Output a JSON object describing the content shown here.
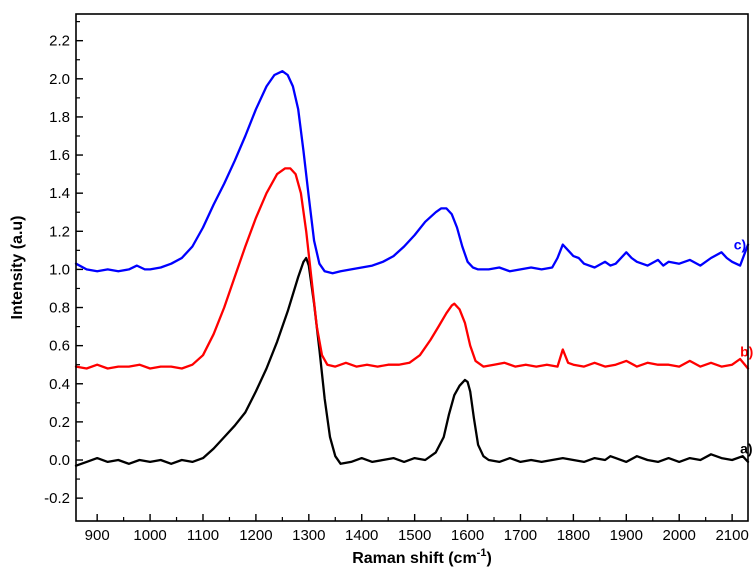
{
  "chart_data": {
    "type": "line",
    "xlabel": "Raman shift (cm",
    "xlabel_sup": "-1",
    "xlabel_end": ")",
    "ylabel": "Intensity (a.u)",
    "xlim": [
      860,
      2130
    ],
    "ylim": [
      -0.32,
      2.34
    ],
    "x_ticks": [
      900,
      1000,
      1100,
      1200,
      1300,
      1400,
      1500,
      1600,
      1700,
      1800,
      1900,
      2000,
      2100
    ],
    "y_ticks": [
      -0.2,
      0.0,
      0.2,
      0.4,
      0.6,
      0.8,
      1.0,
      1.2,
      1.4,
      1.6,
      1.8,
      2.0,
      2.2
    ],
    "x_tick_labels": [
      "900",
      "1000",
      "1100",
      "1200",
      "1300",
      "1400",
      "1500",
      "1600",
      "1700",
      "1800",
      "1900",
      "2000",
      "2100"
    ],
    "y_tick_labels": [
      "-0.2",
      "0.0",
      "0.2",
      "0.4",
      "0.6",
      "0.8",
      "1.0",
      "1.2",
      "1.4",
      "1.6",
      "1.8",
      "2.0",
      "2.2"
    ],
    "grid": false,
    "series": [
      {
        "name": "a)",
        "color": "#000000",
        "label_at": [
          2115,
          0.06
        ],
        "x": [
          860,
          880,
          900,
          920,
          940,
          960,
          980,
          1000,
          1020,
          1040,
          1060,
          1080,
          1100,
          1120,
          1140,
          1160,
          1180,
          1200,
          1220,
          1240,
          1260,
          1280,
          1290,
          1295,
          1300,
          1310,
          1320,
          1330,
          1340,
          1350,
          1360,
          1380,
          1400,
          1420,
          1440,
          1460,
          1480,
          1500,
          1520,
          1540,
          1555,
          1565,
          1575,
          1585,
          1595,
          1600,
          1605,
          1612,
          1620,
          1630,
          1640,
          1660,
          1680,
          1700,
          1720,
          1740,
          1760,
          1780,
          1800,
          1820,
          1840,
          1860,
          1870,
          1880,
          1900,
          1920,
          1940,
          1960,
          1980,
          2000,
          2020,
          2040,
          2060,
          2080,
          2100,
          2120,
          2130
        ],
        "y": [
          -0.03,
          -0.01,
          0.01,
          -0.01,
          0.0,
          -0.02,
          0.0,
          -0.01,
          0.0,
          -0.02,
          0.0,
          -0.01,
          0.01,
          0.06,
          0.12,
          0.18,
          0.25,
          0.36,
          0.48,
          0.62,
          0.78,
          0.96,
          1.04,
          1.06,
          1.02,
          0.82,
          0.58,
          0.32,
          0.12,
          0.02,
          -0.02,
          -0.01,
          0.01,
          -0.01,
          0.0,
          0.01,
          -0.01,
          0.01,
          0.0,
          0.04,
          0.12,
          0.24,
          0.34,
          0.39,
          0.42,
          0.41,
          0.36,
          0.22,
          0.08,
          0.02,
          0.0,
          -0.01,
          0.01,
          -0.01,
          0.0,
          -0.01,
          0.0,
          0.01,
          0.0,
          -0.01,
          0.01,
          0.0,
          0.02,
          0.01,
          -0.01,
          0.02,
          0.0,
          -0.01,
          0.01,
          -0.01,
          0.01,
          0.0,
          0.03,
          0.01,
          0.0,
          0.02,
          -0.01
        ]
      },
      {
        "name": "b)",
        "color": "#ff0000",
        "label_at": [
          2115,
          0.57
        ],
        "x": [
          860,
          880,
          900,
          920,
          940,
          960,
          980,
          1000,
          1020,
          1040,
          1060,
          1080,
          1100,
          1120,
          1140,
          1160,
          1180,
          1200,
          1220,
          1240,
          1255,
          1265,
          1275,
          1285,
          1295,
          1305,
          1315,
          1325,
          1335,
          1350,
          1370,
          1390,
          1410,
          1430,
          1450,
          1470,
          1490,
          1510,
          1530,
          1545,
          1560,
          1570,
          1575,
          1585,
          1595,
          1605,
          1615,
          1630,
          1650,
          1670,
          1690,
          1710,
          1730,
          1750,
          1770,
          1780,
          1790,
          1800,
          1820,
          1840,
          1860,
          1880,
          1900,
          1920,
          1940,
          1960,
          1980,
          2000,
          2020,
          2040,
          2060,
          2080,
          2100,
          2115,
          2130
        ],
        "y": [
          0.49,
          0.48,
          0.5,
          0.48,
          0.49,
          0.49,
          0.5,
          0.48,
          0.49,
          0.49,
          0.48,
          0.5,
          0.55,
          0.66,
          0.8,
          0.96,
          1.12,
          1.27,
          1.4,
          1.5,
          1.53,
          1.53,
          1.5,
          1.4,
          1.2,
          0.95,
          0.7,
          0.55,
          0.5,
          0.49,
          0.51,
          0.49,
          0.5,
          0.49,
          0.5,
          0.5,
          0.51,
          0.55,
          0.63,
          0.7,
          0.77,
          0.81,
          0.82,
          0.79,
          0.72,
          0.6,
          0.52,
          0.49,
          0.5,
          0.51,
          0.49,
          0.5,
          0.49,
          0.5,
          0.49,
          0.58,
          0.51,
          0.5,
          0.49,
          0.51,
          0.49,
          0.5,
          0.52,
          0.49,
          0.51,
          0.5,
          0.5,
          0.49,
          0.52,
          0.49,
          0.51,
          0.49,
          0.5,
          0.53,
          0.48
        ]
      },
      {
        "name": "c)",
        "color": "#0000ff",
        "label_at": [
          2103,
          1.13
        ],
        "x": [
          860,
          880,
          900,
          920,
          940,
          960,
          975,
          990,
          1000,
          1020,
          1040,
          1060,
          1080,
          1100,
          1120,
          1140,
          1160,
          1180,
          1200,
          1220,
          1235,
          1250,
          1260,
          1270,
          1280,
          1290,
          1300,
          1310,
          1320,
          1330,
          1345,
          1360,
          1380,
          1400,
          1420,
          1440,
          1460,
          1480,
          1500,
          1520,
          1540,
          1550,
          1560,
          1570,
          1580,
          1590,
          1600,
          1610,
          1620,
          1640,
          1660,
          1680,
          1700,
          1720,
          1740,
          1760,
          1770,
          1780,
          1790,
          1800,
          1810,
          1820,
          1840,
          1860,
          1870,
          1880,
          1900,
          1910,
          1920,
          1940,
          1960,
          1970,
          1980,
          2000,
          2020,
          2040,
          2060,
          2080,
          2090,
          2100,
          2115,
          2130
        ],
        "y": [
          1.03,
          1.0,
          0.99,
          1.0,
          0.99,
          1.0,
          1.02,
          1.0,
          1.0,
          1.01,
          1.03,
          1.06,
          1.12,
          1.22,
          1.34,
          1.45,
          1.57,
          1.7,
          1.84,
          1.96,
          2.02,
          2.04,
          2.02,
          1.96,
          1.84,
          1.62,
          1.38,
          1.15,
          1.03,
          0.99,
          0.98,
          0.99,
          1.0,
          1.01,
          1.02,
          1.04,
          1.07,
          1.12,
          1.18,
          1.25,
          1.3,
          1.32,
          1.32,
          1.29,
          1.22,
          1.12,
          1.04,
          1.01,
          1.0,
          1.0,
          1.01,
          0.99,
          1.0,
          1.01,
          1.0,
          1.01,
          1.06,
          1.13,
          1.1,
          1.07,
          1.06,
          1.03,
          1.01,
          1.04,
          1.02,
          1.03,
          1.09,
          1.06,
          1.04,
          1.02,
          1.05,
          1.02,
          1.04,
          1.03,
          1.05,
          1.02,
          1.06,
          1.09,
          1.06,
          1.04,
          1.02,
          1.13
        ]
      }
    ]
  }
}
